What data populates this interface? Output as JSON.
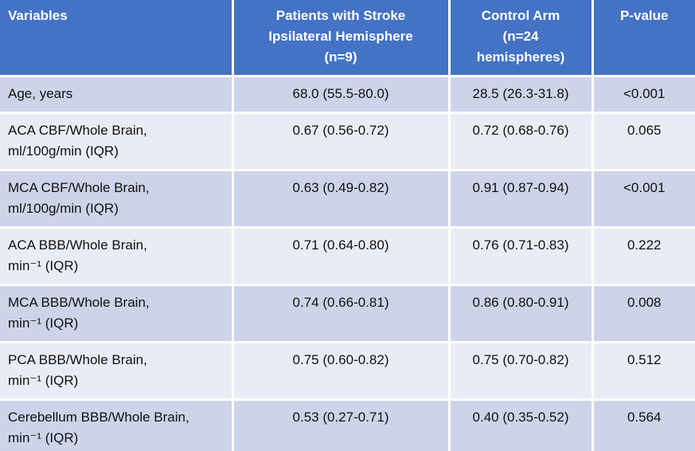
{
  "chart_data": {
    "type": "table",
    "title": "",
    "headers": [
      "Variables",
      "Patients with Stroke\nIpsilateral Hemisphere\n(n=9)",
      "Control Arm\n(n=24\nhemispheres)",
      "P-value"
    ],
    "rows": [
      {
        "variable": "Age, years",
        "unit": "",
        "stroke": "68.0 (55.5-80.0)",
        "control": "28.5 (26.3-31.8)",
        "p_value": "<0.001"
      },
      {
        "variable": "ACA CBF/Whole Brain,",
        "unit": "ml/100g/min (IQR)",
        "stroke": "0.67 (0.56-0.72)",
        "control": "0.72 (0.68-0.76)",
        "p_value": "0.065"
      },
      {
        "variable": "MCA CBF/Whole Brain,",
        "unit": "ml/100g/min (IQR)",
        "stroke": "0.63 (0.49-0.82)",
        "control": "0.91 (0.87-0.94)",
        "p_value": "<0.001"
      },
      {
        "variable": "ACA BBB/Whole Brain,",
        "unit": "min⁻¹ (IQR)",
        "stroke": "0.71 (0.64-0.80)",
        "control": "0.76 (0.71-0.83)",
        "p_value": "0.222"
      },
      {
        "variable": "MCA BBB/Whole Brain,",
        "unit": "min⁻¹ (IQR)",
        "stroke": "0.74 (0.66-0.81)",
        "control": "0.86 (0.80-0.91)",
        "p_value": "0.008"
      },
      {
        "variable": "PCA BBB/Whole Brain,",
        "unit": "min⁻¹ (IQR)",
        "stroke": "0.75 (0.60-0.82)",
        "control": "0.75 (0.70-0.82)",
        "p_value": "0.512"
      },
      {
        "variable": "Cerebellum BBB/Whole Brain,",
        "unit": "min⁻¹ (IQR)",
        "stroke": "0.53 (0.27-0.71)",
        "control": "0.40 (0.35-0.52)",
        "p_value": "0.564"
      }
    ],
    "layout": {
      "banded_rows": true,
      "column_alignments": [
        "left",
        "center",
        "center",
        "center"
      ]
    },
    "colors": {
      "header_bg": "#4472C4",
      "header_text": "#FFFFFF",
      "band_dark": "#CDD4E9",
      "band_light": "#EAECF5",
      "divider": "#FFFFFF",
      "body_text": "#111111"
    }
  }
}
